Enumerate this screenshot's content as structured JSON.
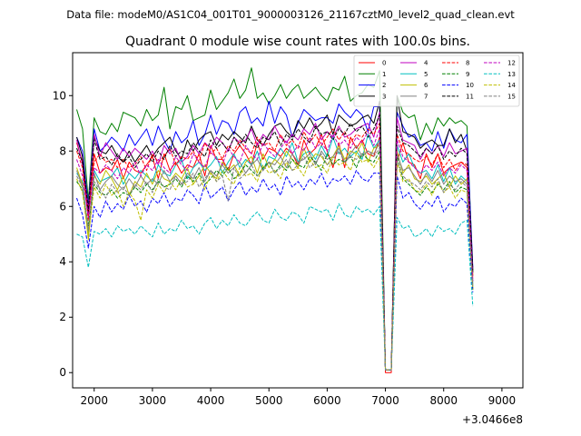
{
  "figure": {
    "suptitle": "Data file: modeM0/AS1C04_001T01_9000003126_21167cztM0_level2_quad_clean.evt",
    "title": "Quadrant 0 module wise count rates with 100.0s bins.",
    "x_offset_label": "+3.0466e8"
  },
  "chart_data": {
    "type": "line",
    "title": "Quadrant 0 module wise count rates with 100.0s bins.",
    "xlabel": "",
    "ylabel": "",
    "x_offset": 304660000,
    "xlim": [
      1630,
      9360
    ],
    "ylim": [
      -0.55,
      11.55
    ],
    "xticks": [
      2000,
      3000,
      4000,
      5000,
      6000,
      7000,
      8000,
      9000
    ],
    "xtick_labels": [
      "2000",
      "3000",
      "4000",
      "5000",
      "6000",
      "7000",
      "8000",
      "9000"
    ],
    "yticks": [
      0,
      2,
      4,
      6,
      8,
      10
    ],
    "ytick_labels": [
      "0",
      "2",
      "4",
      "6",
      "8",
      "10"
    ],
    "grid": false,
    "legend_position": "top-right",
    "x_start": 1700,
    "x_step": 100,
    "series": [
      {
        "name": "0",
        "color": "#ff0000",
        "dash": "solid",
        "values": [
          8.3,
          7.6,
          5.6,
          7.9,
          7.2,
          7.4,
          7.3,
          7.7,
          7.0,
          7.6,
          7.3,
          7.2,
          7.5,
          7.8,
          7.0,
          7.9,
          7.3,
          7.6,
          7.2,
          7.5,
          7.4,
          7.9,
          7.1,
          8.2,
          7.7,
          7.7,
          7.3,
          7.9,
          8.2,
          7.9,
          7.5,
          8.3,
          7.7,
          8.1,
          8.0,
          7.8,
          8.1,
          7.9,
          7.5,
          8.4,
          7.9,
          8.1,
          8.6,
          8.0,
          7.4,
          8.3,
          7.4,
          8.5,
          8.1,
          8.4,
          7.9,
          7.8,
          8.5,
          0.0,
          0.0,
          7.6,
          8.3,
          7.6,
          7.5,
          7.0,
          7.9,
          7.4,
          7.9,
          7.2,
          7.4,
          7.5,
          7.6,
          7.4,
          3.5
        ]
      },
      {
        "name": "1",
        "color": "#008000",
        "dash": "solid",
        "values": [
          9.5,
          8.8,
          6.2,
          9.2,
          8.7,
          8.6,
          9.0,
          8.7,
          9.4,
          9.3,
          9.2,
          8.9,
          9.5,
          9.1,
          9.3,
          10.3,
          8.8,
          9.6,
          9.5,
          10.0,
          9.1,
          9.2,
          9.3,
          10.2,
          9.5,
          9.8,
          10.1,
          10.6,
          9.9,
          10.2,
          11.0,
          9.9,
          10.1,
          9.7,
          10.0,
          10.4,
          9.9,
          10.2,
          10.4,
          9.9,
          10.1,
          10.3,
          10.0,
          9.8,
          10.3,
          10.2,
          10.7,
          9.8,
          10.0,
          10.1,
          10.4,
          10.3,
          10.9,
          0.1,
          0.1,
          10.0,
          9.4,
          9.2,
          9.3,
          8.4,
          9.0,
          8.6,
          9.2,
          8.9,
          9.2,
          9.0,
          9.1,
          8.9,
          3.6
        ]
      },
      {
        "name": "2",
        "color": "#0000ff",
        "dash": "solid",
        "values": [
          8.5,
          8.0,
          6.0,
          8.8,
          8.0,
          8.2,
          8.5,
          8.3,
          8.0,
          8.6,
          8.2,
          8.5,
          8.8,
          8.2,
          8.9,
          8.4,
          8.0,
          8.7,
          8.3,
          8.5,
          9.1,
          8.2,
          8.6,
          9.3,
          8.6,
          9.1,
          9.0,
          8.6,
          9.4,
          9.6,
          9.0,
          9.2,
          8.9,
          9.8,
          9.0,
          9.6,
          9.3,
          8.5,
          9.0,
          9.5,
          9.3,
          9.1,
          9.2,
          9.2,
          9.0,
          9.7,
          9.4,
          9.2,
          9.5,
          9.3,
          8.7,
          9.6,
          9.6,
          0.1,
          0.1,
          9.4,
          8.9,
          8.5,
          8.6,
          8.2,
          8.3,
          8.0,
          8.7,
          8.1,
          8.8,
          8.4,
          8.3,
          8.6,
          3.8
        ]
      },
      {
        "name": "3",
        "color": "#000000",
        "dash": "solid",
        "values": [
          8.5,
          7.8,
          5.8,
          8.5,
          8.0,
          7.9,
          8.2,
          7.8,
          7.6,
          8.0,
          7.6,
          7.9,
          8.2,
          7.8,
          8.1,
          8.3,
          8.5,
          8.0,
          7.7,
          8.4,
          8.0,
          8.4,
          8.6,
          8.7,
          8.2,
          8.6,
          8.4,
          8.7,
          8.5,
          8.3,
          8.9,
          8.4,
          8.2,
          8.6,
          8.9,
          9.0,
          8.7,
          8.5,
          9.1,
          8.8,
          9.2,
          8.8,
          9.0,
          9.3,
          8.6,
          9.3,
          9.1,
          8.9,
          9.0,
          9.2,
          9.3,
          9.0,
          9.8,
          0.1,
          0.1,
          10.0,
          8.7,
          8.6,
          8.5,
          8.1,
          8.3,
          8.4,
          8.2,
          8.2,
          8.8,
          8.3,
          8.6,
          8.0,
          3.7
        ]
      },
      {
        "name": "4",
        "color": "#bf00bf",
        "dash": "solid",
        "values": [
          8.4,
          7.5,
          5.9,
          8.6,
          7.8,
          8.3,
          8.0,
          7.7,
          8.1,
          7.8,
          8.1,
          7.9,
          7.7,
          8.0,
          7.5,
          8.2,
          7.9,
          8.1,
          7.6,
          7.8,
          8.2,
          7.9,
          8.3,
          8.1,
          8.5,
          8.3,
          8.0,
          8.5,
          8.3,
          8.4,
          8.8,
          8.2,
          8.6,
          8.4,
          8.9,
          8.5,
          8.3,
          8.6,
          8.4,
          8.8,
          8.6,
          9.0,
          8.4,
          8.7,
          8.5,
          8.9,
          8.5,
          8.6,
          8.8,
          8.9,
          9.0,
          8.5,
          9.4,
          0.1,
          0.1,
          9.2,
          8.4,
          8.3,
          8.2,
          7.7,
          8.1,
          7.9,
          8.2,
          7.8,
          8.3,
          7.9,
          8.0,
          8.1,
          3.3
        ]
      },
      {
        "name": "5",
        "color": "#00bfbf",
        "dash": "solid",
        "values": [
          7.2,
          6.9,
          5.0,
          7.3,
          6.9,
          7.0,
          7.1,
          7.4,
          6.8,
          7.2,
          7.0,
          7.3,
          7.1,
          6.9,
          7.5,
          7.2,
          7.1,
          7.5,
          7.7,
          7.0,
          7.4,
          7.6,
          7.3,
          7.5,
          7.8,
          7.2,
          7.6,
          7.9,
          7.4,
          7.7,
          7.5,
          8.0,
          7.3,
          7.8,
          7.7,
          8.1,
          7.8,
          8.3,
          7.6,
          7.9,
          8.0,
          7.7,
          8.2,
          7.8,
          8.5,
          7.9,
          8.1,
          7.8,
          8.0,
          7.7,
          8.6,
          8.1,
          8.4,
          0.1,
          0.1,
          8.2,
          7.6,
          7.9,
          7.4,
          7.2,
          7.3,
          7.0,
          7.5,
          6.9,
          7.4,
          6.8,
          7.1,
          6.9,
          3.2
        ]
      },
      {
        "name": "6",
        "color": "#bfbf00",
        "dash": "solid",
        "values": [
          7.4,
          6.8,
          4.8,
          7.1,
          6.8,
          7.3,
          7.0,
          6.6,
          7.1,
          6.4,
          6.9,
          6.7,
          7.2,
          6.8,
          7.3,
          7.0,
          6.9,
          7.2,
          7.0,
          7.4,
          6.8,
          7.1,
          7.5,
          7.2,
          7.0,
          7.6,
          7.3,
          7.5,
          7.1,
          7.6,
          7.8,
          7.2,
          7.9,
          7.4,
          7.7,
          7.5,
          8.0,
          7.7,
          7.4,
          8.1,
          7.6,
          7.9,
          7.8,
          7.5,
          7.8,
          8.2,
          7.7,
          8.0,
          7.9,
          8.3,
          7.6,
          8.1,
          8.2,
          0.1,
          0.1,
          8.0,
          7.2,
          7.5,
          7.0,
          6.9,
          7.1,
          6.8,
          7.0,
          7.2,
          6.7,
          7.1,
          6.8,
          7.0,
          3.1
        ]
      },
      {
        "name": "7",
        "color": "#808080",
        "dash": "solid",
        "values": [
          7.3,
          6.7,
          5.1,
          7.2,
          6.6,
          6.9,
          7.1,
          6.8,
          6.6,
          7.0,
          6.7,
          7.1,
          6.8,
          7.0,
          6.8,
          7.3,
          6.9,
          7.1,
          6.8,
          7.2,
          7.0,
          7.4,
          6.9,
          7.3,
          7.1,
          7.5,
          7.2,
          7.4,
          7.6,
          7.2,
          7.5,
          7.7,
          7.3,
          7.6,
          7.5,
          7.8,
          7.4,
          7.9,
          7.6,
          7.7,
          7.9,
          7.5,
          8.0,
          7.7,
          7.8,
          8.1,
          7.6,
          7.9,
          8.2,
          7.8,
          8.0,
          7.9,
          8.3,
          0.1,
          0.1,
          7.9,
          7.3,
          7.4,
          7.1,
          6.8,
          7.2,
          6.9,
          7.3,
          6.8,
          7.1,
          6.9,
          7.0,
          6.8,
          3.0
        ]
      },
      {
        "name": "8",
        "color": "#ff0000",
        "dash": "dashed",
        "values": [
          8.0,
          7.4,
          5.5,
          7.6,
          7.9,
          7.6,
          7.7,
          7.4,
          7.7,
          7.4,
          7.5,
          7.8,
          7.3,
          7.9,
          7.6,
          7.8,
          8.1,
          7.5,
          7.8,
          7.7,
          8.0,
          7.6,
          8.3,
          7.9,
          8.1,
          7.7,
          8.2,
          8.0,
          8.4,
          8.1,
          7.9,
          8.5,
          8.2,
          8.3,
          8.0,
          8.6,
          8.2,
          8.4,
          8.1,
          8.7,
          8.3,
          8.6,
          8.2,
          8.5,
          8.8,
          8.4,
          8.7,
          8.3,
          8.6,
          8.5,
          8.8,
          8.6,
          9.0,
          0.1,
          0.1,
          8.6,
          8.0,
          7.9,
          7.7,
          7.6,
          7.8,
          7.5,
          7.9,
          7.4,
          7.7,
          7.3,
          7.6,
          7.5,
          3.4
        ]
      },
      {
        "name": "9",
        "color": "#008000",
        "dash": "dashed",
        "values": [
          6.9,
          6.6,
          5.3,
          6.8,
          6.5,
          6.4,
          6.6,
          6.3,
          6.5,
          6.4,
          6.7,
          6.5,
          6.8,
          6.6,
          6.9,
          6.7,
          6.8,
          7.0,
          6.7,
          7.1,
          6.9,
          7.2,
          6.8,
          7.0,
          7.3,
          7.1,
          7.4,
          7.0,
          7.2,
          7.5,
          7.3,
          7.1,
          7.4,
          7.6,
          7.2,
          7.5,
          7.3,
          7.7,
          7.5,
          7.4,
          7.8,
          7.6,
          7.3,
          7.9,
          7.5,
          7.7,
          7.6,
          7.8,
          7.4,
          7.9,
          7.7,
          7.6,
          8.0,
          0.1,
          0.1,
          7.8,
          7.0,
          6.8,
          6.6,
          6.4,
          6.7,
          6.5,
          6.8,
          6.6,
          6.9,
          6.5,
          6.7,
          6.6,
          3.0
        ]
      },
      {
        "name": "10",
        "color": "#0000ff",
        "dash": "dashed",
        "values": [
          6.3,
          5.7,
          4.5,
          6.0,
          5.6,
          6.2,
          5.8,
          6.1,
          5.9,
          6.4,
          6.0,
          6.2,
          5.8,
          6.3,
          6.1,
          6.5,
          6.0,
          6.3,
          6.2,
          6.6,
          6.4,
          6.1,
          6.8,
          6.3,
          6.5,
          6.7,
          6.2,
          6.6,
          6.9,
          6.4,
          6.7,
          6.5,
          7.0,
          6.6,
          6.8,
          6.4,
          7.1,
          6.7,
          6.9,
          6.6,
          7.0,
          6.8,
          7.2,
          6.7,
          7.0,
          6.9,
          7.1,
          6.8,
          7.3,
          7.0,
          6.9,
          7.2,
          7.2,
          0.1,
          0.1,
          7.1,
          6.3,
          6.5,
          6.1,
          5.9,
          6.2,
          6.0,
          6.4,
          5.8,
          6.1,
          6.0,
          6.3,
          6.1,
          2.9
        ]
      },
      {
        "name": "11",
        "color": "#000000",
        "dash": "dashed",
        "values": [
          8.1,
          7.6,
          5.9,
          8.4,
          7.7,
          7.8,
          7.5,
          7.9,
          7.6,
          7.8,
          7.4,
          7.7,
          7.9,
          7.6,
          8.0,
          7.7,
          8.2,
          7.8,
          8.0,
          7.9,
          8.3,
          8.0,
          7.8,
          8.4,
          8.1,
          8.3,
          8.0,
          8.5,
          8.2,
          8.6,
          8.3,
          8.1,
          8.5,
          8.4,
          8.7,
          8.2,
          8.6,
          8.4,
          8.8,
          8.5,
          8.3,
          8.9,
          8.6,
          8.7,
          8.4,
          8.8,
          8.6,
          9.0,
          8.7,
          8.9,
          8.5,
          8.8,
          9.3,
          0.1,
          0.1,
          8.9,
          8.3,
          8.2,
          8.0,
          7.8,
          8.1,
          7.9,
          8.2,
          7.7,
          8.0,
          7.8,
          8.1,
          7.9,
          3.6
        ]
      },
      {
        "name": "12",
        "color": "#bf00bf",
        "dash": "dashed",
        "values": [
          7.7,
          7.1,
          5.6,
          7.4,
          7.2,
          7.5,
          7.3,
          7.0,
          7.4,
          7.2,
          7.6,
          7.1,
          7.5,
          7.3,
          7.7,
          7.4,
          7.2,
          7.8,
          7.5,
          7.3,
          7.9,
          7.6,
          7.4,
          8.0,
          7.7,
          7.5,
          8.1,
          7.8,
          7.6,
          8.2,
          7.9,
          7.7,
          8.3,
          8.0,
          7.8,
          8.1,
          8.4,
          7.9,
          8.2,
          8.0,
          8.5,
          8.1,
          8.3,
          8.0,
          8.6,
          8.2,
          8.4,
          8.1,
          8.5,
          8.3,
          8.7,
          8.2,
          8.8,
          0.1,
          0.1,
          8.4,
          7.8,
          7.6,
          7.4,
          7.2,
          7.5,
          7.3,
          7.6,
          7.1,
          7.4,
          7.2,
          7.5,
          7.3,
          3.3
        ]
      },
      {
        "name": "13",
        "color": "#00bfbf",
        "dash": "dashed",
        "values": [
          5.0,
          4.9,
          3.8,
          5.1,
          5.0,
          5.2,
          4.9,
          5.3,
          5.1,
          5.2,
          5.0,
          5.3,
          5.1,
          4.9,
          5.4,
          5.0,
          5.2,
          5.1,
          5.5,
          5.2,
          5.3,
          5.0,
          5.4,
          5.6,
          5.2,
          5.5,
          5.3,
          5.7,
          5.4,
          5.3,
          5.6,
          5.8,
          5.5,
          5.4,
          5.9,
          5.6,
          5.5,
          5.8,
          5.7,
          5.4,
          6.0,
          5.9,
          5.8,
          5.9,
          5.5,
          6.1,
          5.7,
          5.6,
          6.0,
          5.8,
          5.9,
          5.7,
          6.0,
          0.1,
          0.1,
          5.6,
          5.2,
          5.3,
          4.9,
          5.0,
          5.2,
          4.9,
          5.3,
          5.1,
          5.2,
          5.0,
          5.4,
          5.5,
          2.4
        ]
      },
      {
        "name": "14",
        "color": "#bfbf00",
        "dash": "dashed",
        "values": [
          7.0,
          6.5,
          4.9,
          6.7,
          6.3,
          6.8,
          6.4,
          6.6,
          6.0,
          6.5,
          6.2,
          5.5,
          6.6,
          6.3,
          6.8,
          6.5,
          6.9,
          6.6,
          7.0,
          6.7,
          6.8,
          7.1,
          6.6,
          7.2,
          6.9,
          7.3,
          7.0,
          6.8,
          7.4,
          7.1,
          7.2,
          6.9,
          7.5,
          7.2,
          7.3,
          7.0,
          7.6,
          7.3,
          7.4,
          7.1,
          7.7,
          7.4,
          7.5,
          7.2,
          7.8,
          7.5,
          7.6,
          7.3,
          7.9,
          7.6,
          7.7,
          7.4,
          7.8,
          0.1,
          0.1,
          7.6,
          6.9,
          7.0,
          6.6,
          6.5,
          6.8,
          6.4,
          6.9,
          6.5,
          6.7,
          6.3,
          6.6,
          6.5,
          3.0
        ]
      },
      {
        "name": "15",
        "color": "#808080",
        "dash": "dashed",
        "values": [
          7.1,
          6.7,
          5.2,
          6.9,
          6.6,
          6.3,
          6.8,
          6.5,
          6.7,
          6.4,
          6.8,
          6.6,
          6.9,
          6.5,
          7.0,
          6.7,
          6.6,
          7.1,
          6.8,
          6.9,
          7.2,
          6.7,
          7.0,
          7.3,
          6.9,
          7.1,
          6.2,
          7.4,
          7.0,
          7.2,
          7.5,
          7.1,
          7.3,
          7.6,
          7.2,
          7.4,
          7.7,
          7.3,
          7.5,
          7.8,
          7.4,
          7.6,
          7.9,
          7.5,
          7.7,
          8.0,
          7.6,
          7.8,
          7.7,
          7.9,
          8.0,
          7.8,
          8.1,
          0.1,
          0.1,
          7.7,
          7.1,
          6.9,
          6.8,
          6.6,
          6.9,
          6.7,
          7.0,
          6.5,
          6.8,
          6.6,
          6.9,
          6.7,
          3.1
        ]
      }
    ]
  }
}
